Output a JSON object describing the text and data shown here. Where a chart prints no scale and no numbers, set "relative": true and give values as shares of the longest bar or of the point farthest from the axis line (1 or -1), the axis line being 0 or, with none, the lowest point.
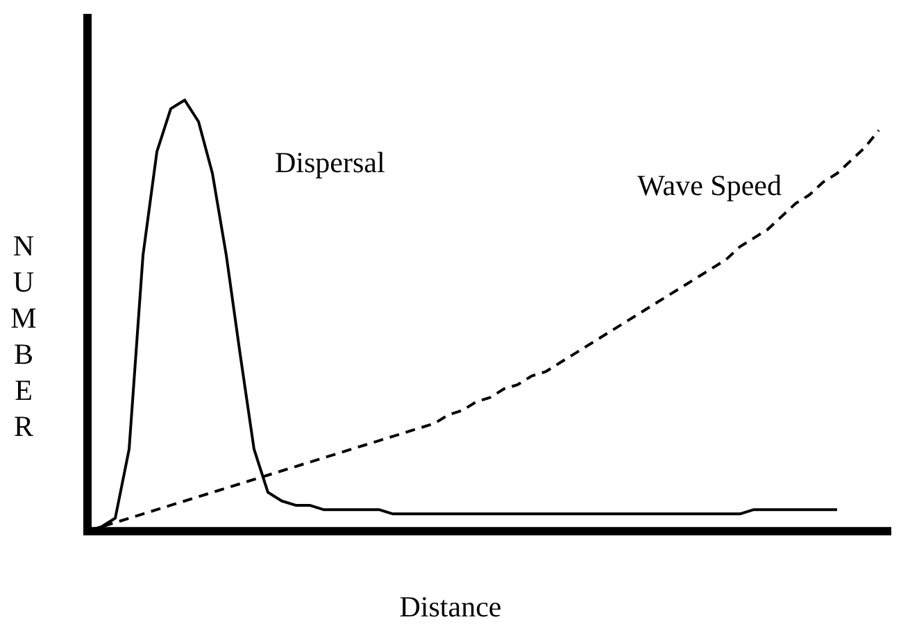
{
  "chart_data": {
    "type": "line",
    "relative": true,
    "xlabel": "Distance",
    "ylabel": "NUMBER",
    "legend": false,
    "grid": false,
    "marker": "none",
    "categories": [
      null,
      null,
      null,
      null,
      null,
      null,
      null,
      null,
      null,
      null,
      null,
      null,
      null,
      null,
      null,
      null,
      null,
      null,
      null,
      null,
      null,
      null,
      null,
      null,
      null,
      null,
      null,
      null,
      null,
      null,
      null,
      null,
      null,
      null,
      null,
      null,
      null,
      null,
      null,
      null,
      null,
      null,
      null,
      null,
      null,
      null,
      null,
      null,
      null,
      null,
      null,
      null,
      null,
      null,
      null,
      null,
      null,
      null
    ],
    "series": [
      {
        "name": "Dispersal",
        "color": "#000000",
        "line_style": "solid",
        "values": [
          0,
          0.01,
          0.03,
          0.19,
          0.64,
          0.88,
          0.98,
          1,
          0.95,
          0.83,
          0.64,
          0.41,
          0.19,
          0.09,
          0.07,
          0.06,
          0.06,
          0.05,
          0.05,
          0.05,
          0.05,
          0.05,
          0.04,
          0.04,
          0.04,
          0.04,
          0.04,
          0.04,
          0.04,
          0.04,
          0.04,
          0.04,
          0.04,
          0.04,
          0.04,
          0.04,
          0.04,
          0.04,
          0.04,
          0.04,
          0.04,
          0.04,
          0.04,
          0.04,
          0.04,
          0.04,
          0.04,
          0.04,
          0.05,
          0.05,
          0.05,
          0.05,
          0.05,
          0.05,
          0.05,
          null,
          null,
          null
        ]
      },
      {
        "name": "Wave Speed",
        "color": "#000000",
        "line_style": "dashed",
        "values": [
          0,
          0.01,
          0.02,
          0.03,
          0.04,
          0.05,
          0.06,
          0.07,
          0.08,
          0.09,
          0.1,
          0.11,
          0.12,
          0.13,
          0.14,
          0.15,
          0.16,
          0.17,
          0.18,
          0.19,
          0.2,
          0.21,
          0.22,
          0.23,
          0.24,
          0.25,
          0.27,
          0.28,
          0.3,
          0.31,
          0.33,
          0.34,
          0.36,
          0.37,
          0.39,
          0.41,
          0.43,
          0.45,
          0.47,
          0.49,
          0.51,
          0.53,
          0.55,
          0.57,
          0.59,
          0.61,
          0.63,
          0.66,
          0.68,
          0.7,
          0.73,
          0.76,
          0.78,
          0.81,
          0.83,
          0.86,
          0.89,
          0.93
        ]
      }
    ]
  }
}
